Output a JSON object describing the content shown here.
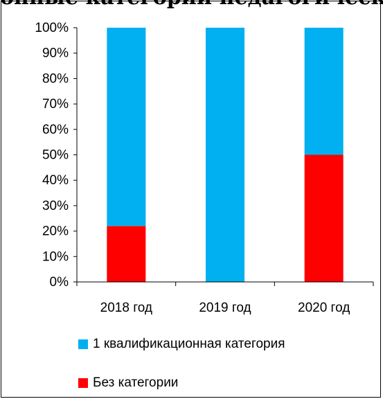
{
  "chart_data": {
    "type": "bar",
    "stacked": true,
    "percent": true,
    "title": "онные категории педагогических",
    "categories": [
      "2018 год",
      "2019 год",
      "2020 год"
    ],
    "series": [
      {
        "name": "Без категории",
        "values": [
          22,
          0,
          50
        ],
        "color": "#ff0000"
      },
      {
        "name": "1 квалификационная категория",
        "values": [
          78,
          100,
          50
        ],
        "color": "#00b0f0"
      }
    ],
    "yticks": [
      "0%",
      "10%",
      "20%",
      "30%",
      "40%",
      "50%",
      "60%",
      "70%",
      "80%",
      "90%",
      "100%"
    ],
    "ylim": [
      0,
      100
    ],
    "grid": false,
    "legend": "bottom"
  }
}
